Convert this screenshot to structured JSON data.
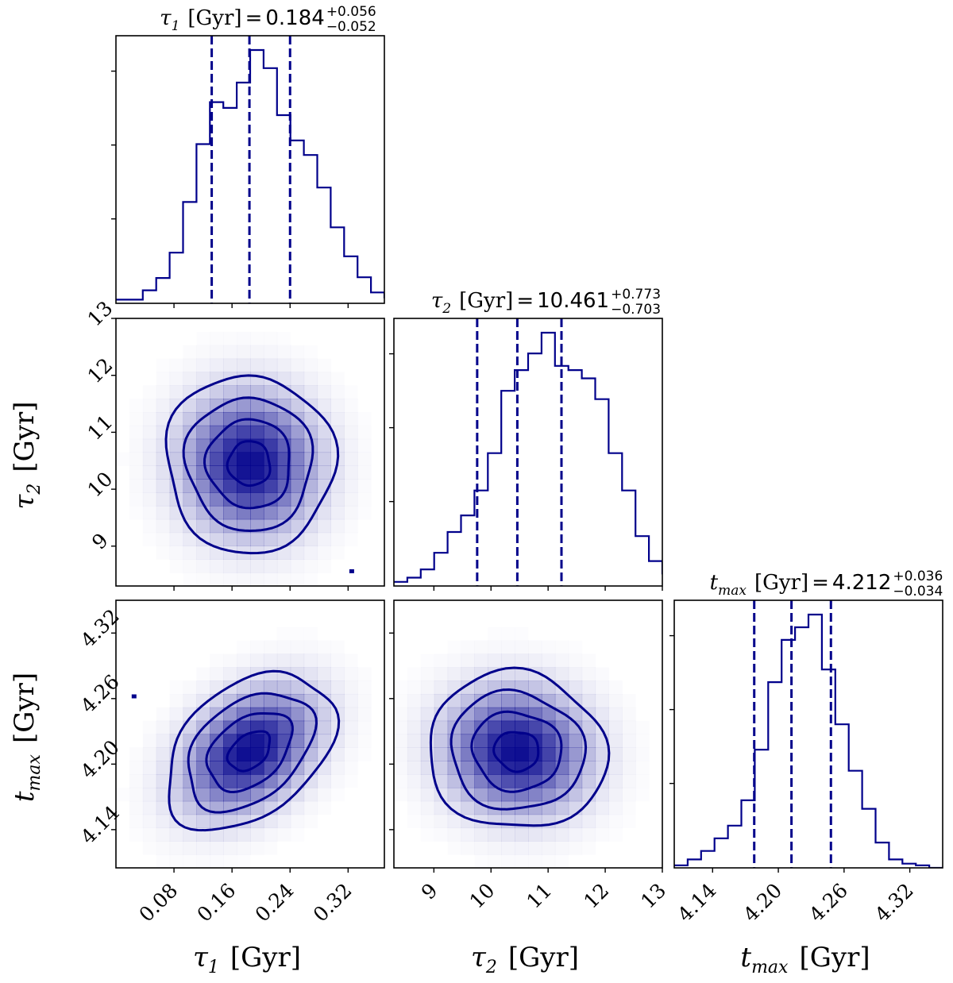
{
  "chart_data": {
    "type": "corner",
    "colors": {
      "line": "#00008b",
      "fill": "#00008b"
    },
    "params": [
      {
        "key": "tau1",
        "symbol": "τ",
        "sub": "1",
        "unit": "[Gyr]",
        "axis_label": "τ1 [Gyr]",
        "range": [
          0.0,
          0.37
        ],
        "ticks": [
          0.08,
          0.16,
          0.24,
          0.32
        ],
        "tick_labels": [
          "0.08",
          "0.16",
          "0.24",
          "0.32"
        ],
        "quantiles": [
          0.132,
          0.184,
          0.24
        ],
        "title_eq": "=",
        "title_value": "0.184",
        "title_plus": "+0.056",
        "title_minus": "−0.052",
        "hist": {
          "edges_start": 0.0,
          "bin_width": 0.0185,
          "counts": [
            0.5,
            0.5,
            1.8,
            3.5,
            7.0,
            14.0,
            22.0,
            27.8,
            27.0,
            30.5,
            35.0,
            32.5,
            26.0,
            22.5,
            20.5,
            16.0,
            10.5,
            6.5,
            3.6,
            1.5,
            0.8,
            0.0
          ]
        }
      },
      {
        "key": "tau2",
        "symbol": "τ",
        "sub": "2",
        "unit": "[Gyr]",
        "axis_label": "τ2 [Gyr]",
        "range": [
          8.3,
          13.0
        ],
        "ticks": [
          9,
          10,
          11,
          12,
          13
        ],
        "tick_labels": [
          "9",
          "10",
          "11",
          "12",
          "13"
        ],
        "quantiles": [
          9.758,
          10.461,
          11.234
        ],
        "title_eq": "=",
        "title_value": "10.461",
        "title_plus": "+0.773",
        "title_minus": "−0.703",
        "hist": {
          "edges_start": 8.3,
          "bin_width": 0.235,
          "counts": [
            0.5,
            1.0,
            2.0,
            4.0,
            6.5,
            8.5,
            11.5,
            16.0,
            23.5,
            26.0,
            28.0,
            30.5,
            26.5,
            26.0,
            25.0,
            22.5,
            16.0,
            11.5,
            6.0,
            3.0,
            1.5,
            0.5
          ]
        }
      },
      {
        "key": "tmax",
        "symbol": "t",
        "sub": "max",
        "unit": "[Gyr]",
        "axis_label": "tmax [Gyr]",
        "range": [
          4.105,
          4.35
        ],
        "ticks": [
          4.14,
          4.2,
          4.26,
          4.32
        ],
        "tick_labels": [
          "4.14",
          "4.20",
          "4.26",
          "4.32"
        ],
        "quantiles": [
          4.178,
          4.212,
          4.248
        ],
        "title_eq": "=",
        "title_value": "4.212",
        "title_plus": "+0.036",
        "title_minus": "−0.034",
        "hist": {
          "edges_start": 4.105,
          "bin_width": 0.01225,
          "counts": [
            0.3,
            1.0,
            2.0,
            3.5,
            5.0,
            8.0,
            14.0,
            22.0,
            27.0,
            28.5,
            30.0,
            23.5,
            17.0,
            11.5,
            7.0,
            3.0,
            1.0,
            0.5,
            0.3,
            0.0
          ]
        }
      }
    ],
    "pairs": [
      {
        "x": "tau1",
        "y": "tau2",
        "density": {
          "mean": [
            0.184,
            10.45
          ],
          "sigma": [
            0.058,
            0.78
          ],
          "rho": -0.02
        },
        "contour_levels": [
          0.5,
          1.0,
          1.5,
          2.0
        ],
        "outliers": [
          [
            0.325,
            8.56
          ]
        ]
      },
      {
        "x": "tau1",
        "y": "tmax",
        "density": {
          "mean": [
            0.184,
            4.212
          ],
          "sigma": [
            0.058,
            0.036
          ],
          "rho": 0.38
        },
        "contour_levels": [
          0.5,
          1.0,
          1.5,
          2.0
        ],
        "outliers": [
          [
            0.025,
            4.262
          ]
        ]
      },
      {
        "x": "tau2",
        "y": "tmax",
        "density": {
          "mean": [
            10.45,
            4.212
          ],
          "sigma": [
            0.78,
            0.036
          ],
          "rho": -0.05
        },
        "contour_levels": [
          0.5,
          1.0,
          1.5,
          2.0
        ],
        "outliers": []
      }
    ]
  }
}
